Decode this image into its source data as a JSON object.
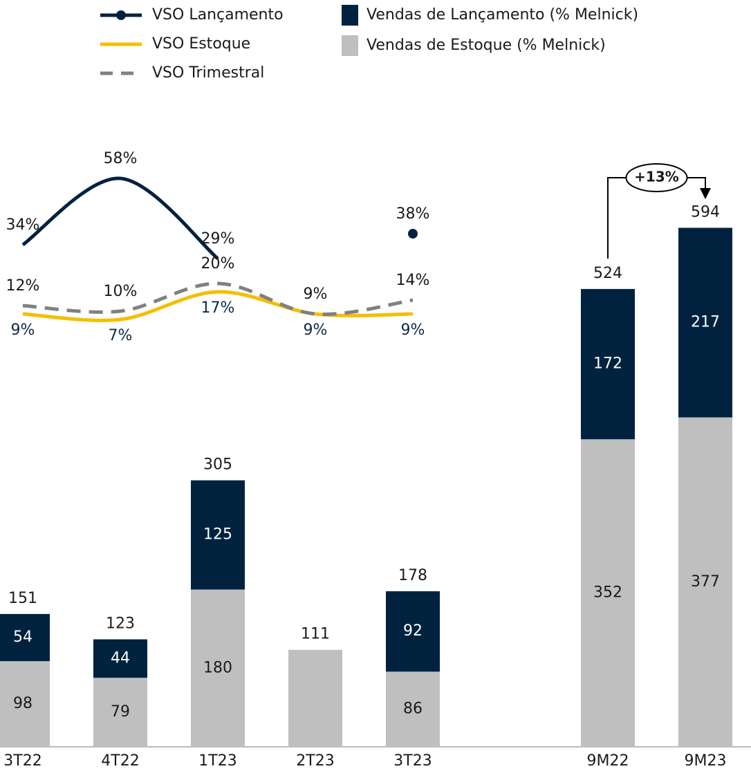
{
  "chart_data": {
    "type": "bar",
    "stacked": true,
    "categories": [
      "3T22",
      "4T22",
      "1T23",
      "2T23",
      "3T23",
      null,
      "9M22",
      "9M23"
    ],
    "ylim": [
      0,
      850
    ],
    "y2lim": [
      0,
      100
    ],
    "series": [
      {
        "name": "Vendas de Lançamento (% Melnick)",
        "type": "bar",
        "color": "#00223f",
        "label_color": "#ffffff",
        "values": [
          54,
          44,
          125,
          null,
          92,
          null,
          172,
          217
        ]
      },
      {
        "name": "Vendas de Estoque (% Melnick)",
        "type": "bar",
        "color": "#bfbfbf",
        "label_color": "#1a1a1a",
        "values": [
          98,
          79,
          180,
          111,
          86,
          null,
          352,
          377
        ],
        "value_labels": [
          98,
          79,
          180,
          null,
          86,
          null,
          352,
          377
        ]
      },
      {
        "name": "VSO Lançamento",
        "type": "line",
        "axis": "y2",
        "color": "#00223f",
        "marker": true,
        "label_position": "above",
        "label_color": "#1a1a1a",
        "values": [
          34,
          58,
          29,
          null,
          38,
          null,
          null,
          null
        ],
        "value_labels": [
          "34%",
          "58%",
          "29%",
          null,
          "38%",
          null,
          null,
          null
        ]
      },
      {
        "name": "VSO Estoque",
        "type": "line",
        "axis": "y2",
        "color": "#f5be00",
        "label_position": "below",
        "label_color": "#0d2a4a",
        "values": [
          9,
          7,
          17,
          9,
          9,
          null,
          null,
          null
        ],
        "value_labels": [
          "9%",
          "7%",
          "17%",
          "9%",
          "9%",
          null,
          null,
          null
        ]
      },
      {
        "name": "VSO Trimestral",
        "type": "line",
        "axis": "y2",
        "color": "#808080",
        "dashed": true,
        "label_position": "above",
        "label_color": "#1a1a1a",
        "values": [
          12,
          10,
          20,
          9,
          14,
          null,
          null,
          null
        ],
        "value_labels": [
          "12%",
          "10%",
          "20%",
          "9%",
          "14%",
          null,
          null,
          null
        ]
      }
    ],
    "totals": [
      151,
      123,
      305,
      111,
      178,
      null,
      524,
      594
    ],
    "annotation": {
      "text": "+13%",
      "from": 6,
      "to": 7
    }
  }
}
